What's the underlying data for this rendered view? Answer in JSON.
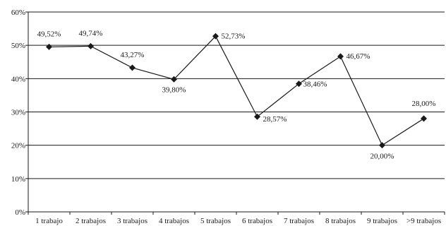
{
  "chart_data": {
    "type": "line",
    "title": "",
    "xlabel": "",
    "ylabel": "",
    "ylim": [
      0,
      60
    ],
    "yticks": [
      "0%",
      "10%",
      "20%",
      "30%",
      "40%",
      "50%",
      "60%"
    ],
    "categories": [
      "1 trabajo",
      "2 trabajos",
      "3 trabajos",
      "4 trabajos",
      "5 trabajos",
      "6 trabajos",
      "7 trabajos",
      "8 trabajos",
      "9 trabajos",
      ">9 trabajos"
    ],
    "series": [
      {
        "values": [
          49.52,
          49.74,
          43.27,
          39.8,
          52.73,
          28.57,
          38.46,
          46.67,
          20.0,
          28.0
        ],
        "labels": [
          "49,52%",
          "49,74%",
          "43,27%",
          "39,80%",
          "52,73%",
          "28,57%",
          "38,46%",
          "46,67%",
          "20,00%",
          "28,00%"
        ]
      }
    ],
    "grid": true,
    "legend": "none",
    "colors": {
      "line": "#1a1a1a",
      "grid": "#1a1a1a",
      "text": "#1a1a1a"
    },
    "marker": "diamond"
  }
}
